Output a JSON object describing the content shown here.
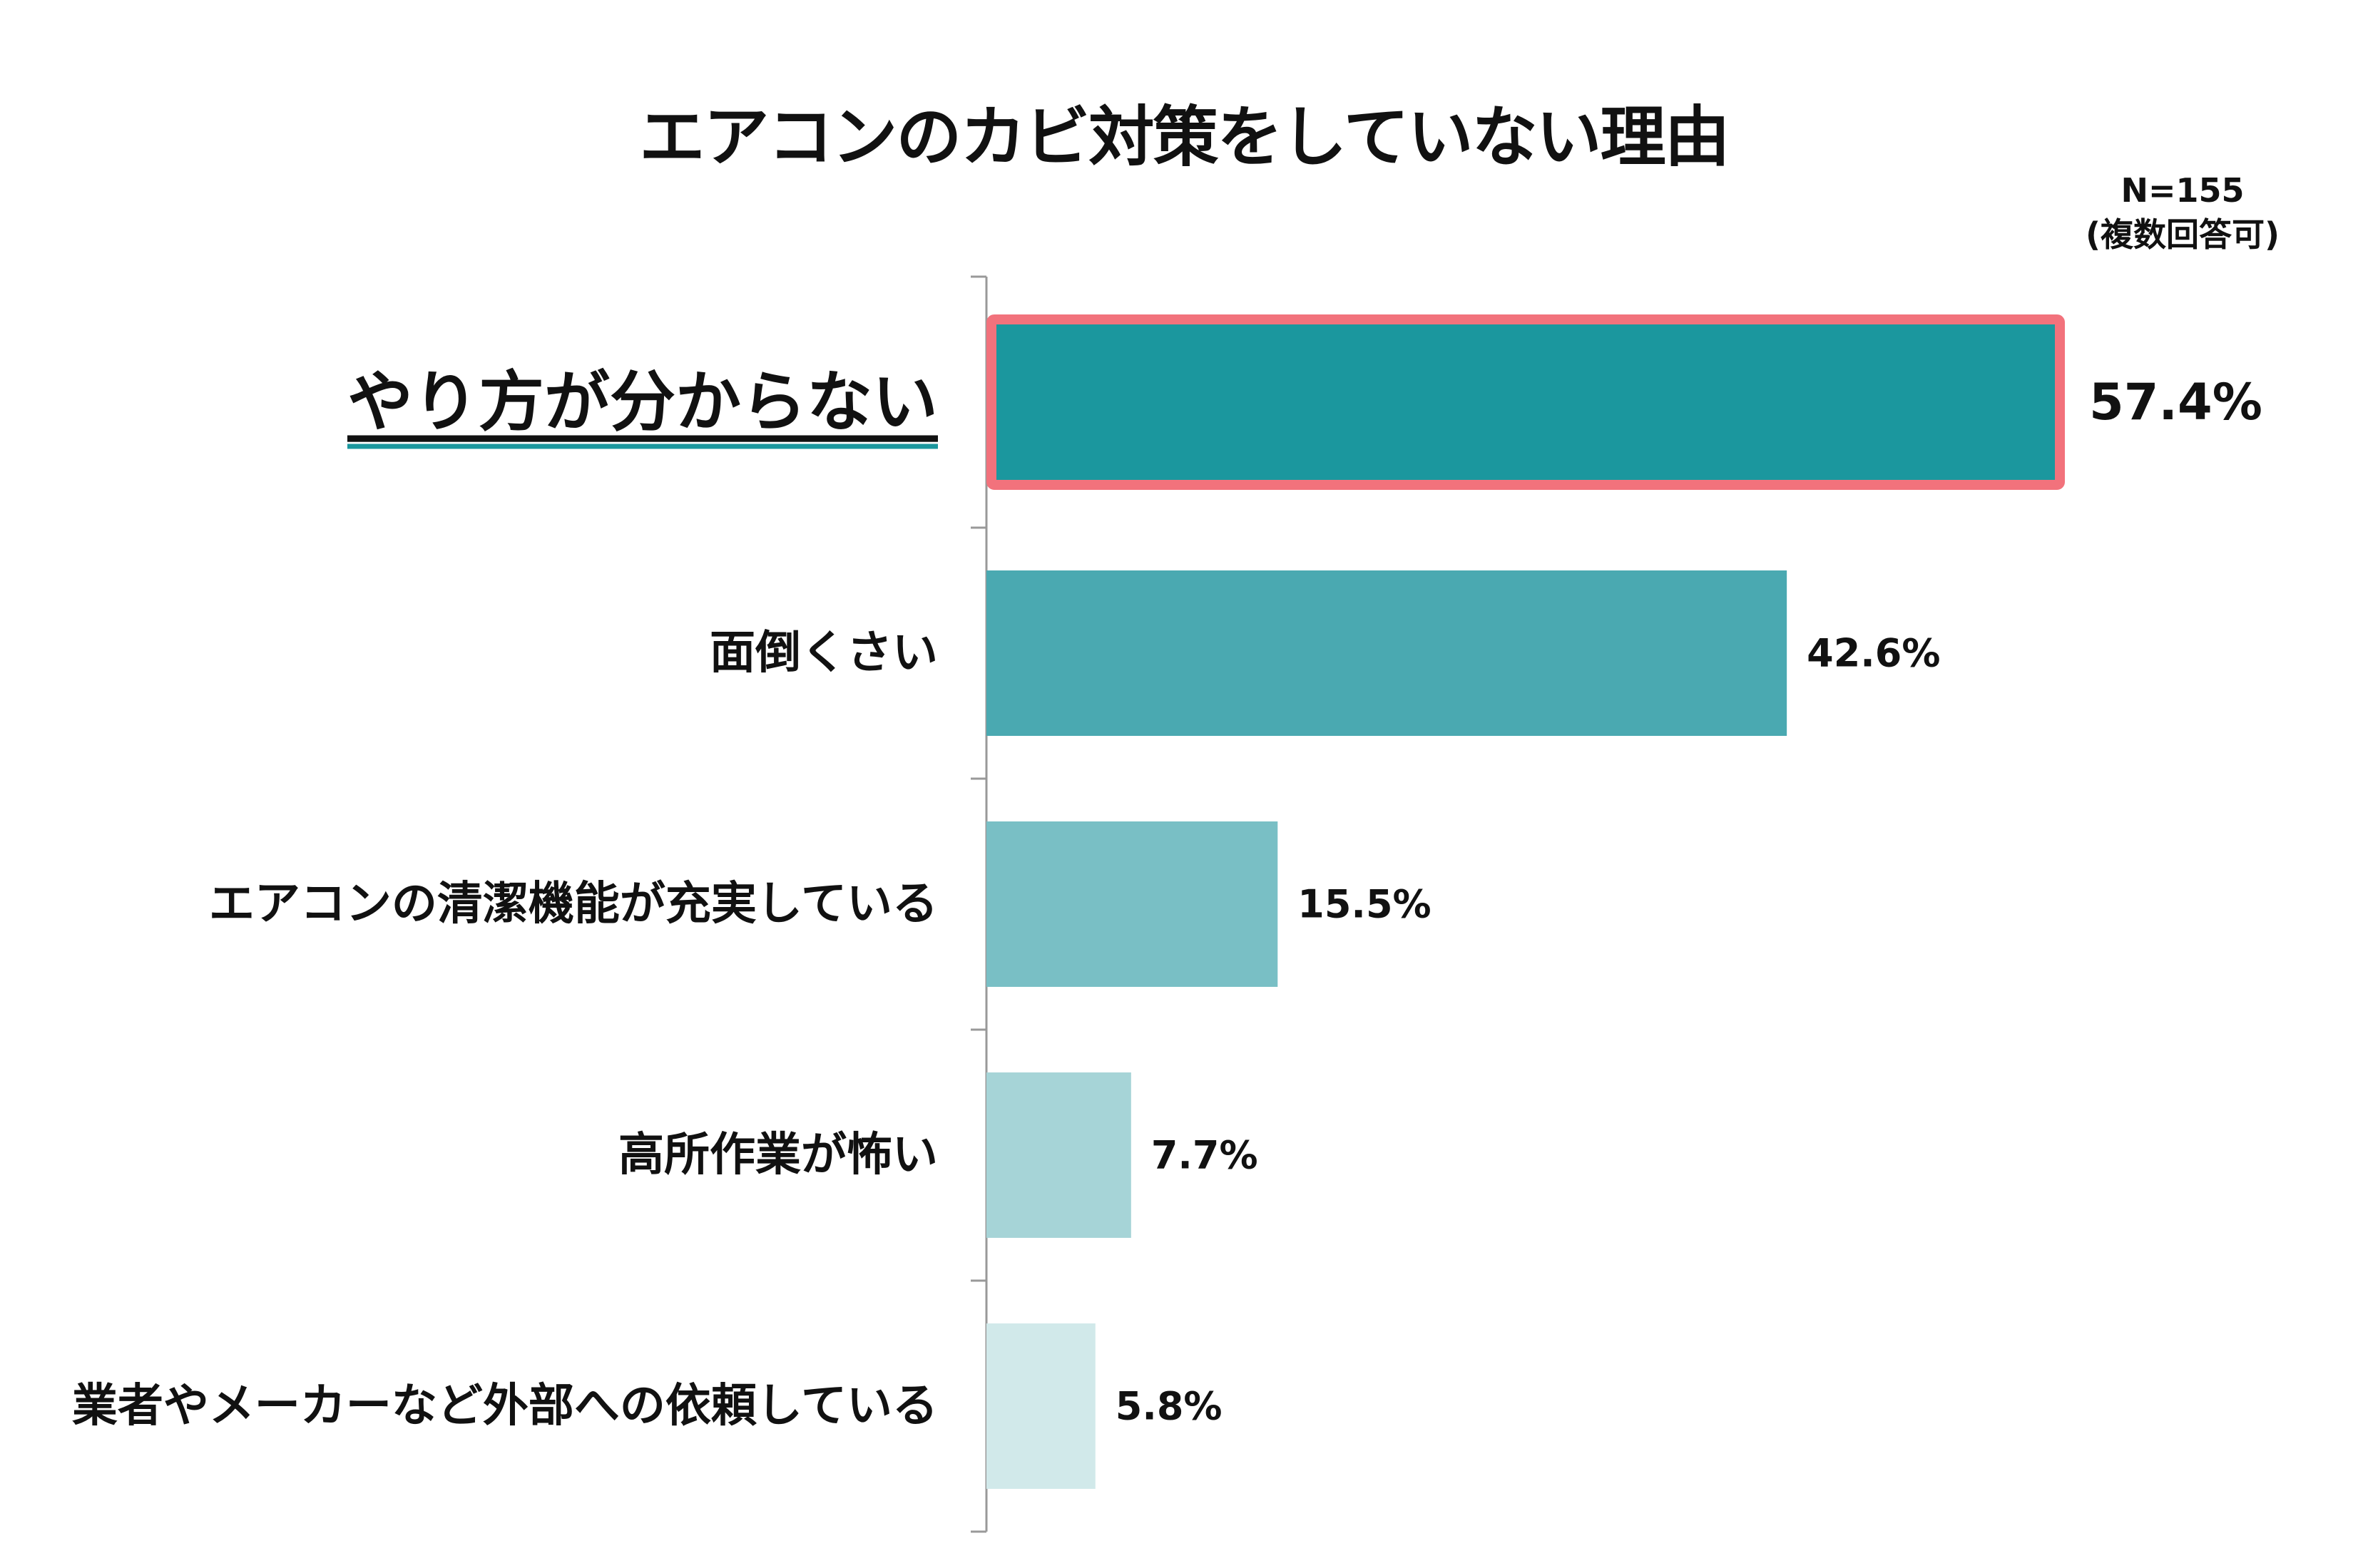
{
  "chart_data": {
    "type": "bar",
    "orientation": "horizontal",
    "title": "エアコンのカビ対策をしていない理由",
    "note": [
      "N=155",
      "(複数回答可)"
    ],
    "categories": [
      "やり方が分からない",
      "面倒くさい",
      "エアコンの清潔機能が充実している",
      "高所作業が怖い",
      "業者やメーカーなど外部への依頼している"
    ],
    "values": [
      57.4,
      42.6,
      15.5,
      7.7,
      5.8
    ],
    "value_labels": [
      "57.4%",
      "42.6%",
      "15.5%",
      "7.7%",
      "5.8%"
    ],
    "unit": "%",
    "xlim": [
      0,
      57.4
    ],
    "grid": false,
    "legend": "none",
    "highlight_index": 0
  },
  "colors": {
    "bars": [
      "#1b979e",
      "#4aa9b1",
      "#79bfc5",
      "#a6d4d7",
      "#d1e9ea"
    ],
    "highlight_border": "#f2727c",
    "highlight_label": "#1b979e",
    "axis": "#999999"
  }
}
